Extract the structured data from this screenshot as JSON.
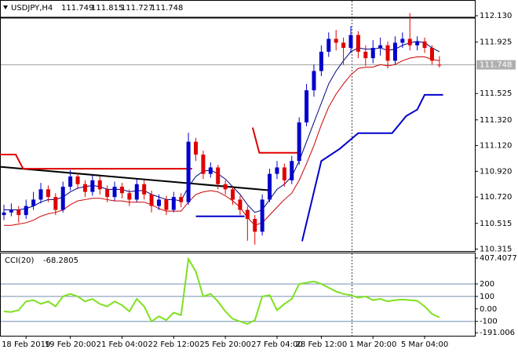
{
  "chart_data": {
    "type": "candlestick",
    "symbol": "USDJPY,H4",
    "xlim": [
      -0.53,
      63.8
    ],
    "ylim": [
      110.3,
      112.24
    ],
    "yticks": [
      {
        "value": 112.13,
        "label": "112.130"
      },
      111.925,
      111.525,
      {
        "value": 111.32,
        "label": "111.320"
      },
      {
        "value": 111.12,
        "label": "111.120"
      },
      {
        "value": 110.92,
        "label": "110.920"
      },
      {
        "value": 110.72,
        "label": "110.720"
      },
      110.515,
      110.315
    ],
    "up_color": "#0000cc",
    "down_color": "#e00000",
    "categories": [
      null,
      null,
      null,
      "18 Feb 2019",
      null,
      null,
      null,
      null,
      null,
      "19 Feb 20:00",
      null,
      null,
      null,
      null,
      null,
      null,
      "21 Feb 04:00",
      null,
      null,
      null,
      null,
      null,
      null,
      "22 Feb 12:00",
      null,
      null,
      null,
      null,
      null,
      null,
      "25 Feb 20:00",
      null,
      null,
      null,
      null,
      null,
      null,
      "27 Feb 04:00",
      null,
      null,
      null,
      null,
      null,
      "28 Feb 12:00",
      null,
      null,
      null,
      null,
      null,
      null,
      "1 Mar 20:00",
      null,
      null,
      null,
      null,
      null,
      null,
      "5 Mar 04:00",
      null,
      null
    ],
    "open": [
      110.58,
      110.6,
      110.62,
      110.58,
      110.65,
      110.7,
      110.78,
      110.72,
      110.62,
      110.8,
      110.88,
      110.82,
      110.76,
      110.85,
      110.78,
      110.72,
      110.8,
      110.75,
      110.7,
      110.82,
      110.74,
      110.65,
      110.7,
      110.62,
      110.72,
      110.68,
      111.15,
      111.05,
      110.9,
      110.95,
      110.82,
      110.78,
      110.7,
      110.62,
      110.55,
      110.45,
      110.7,
      110.9,
      110.95,
      110.85,
      111.0,
      111.3,
      111.55,
      111.7,
      111.85,
      111.95,
      111.92,
      111.88,
      111.98,
      111.85,
      111.8,
      111.88,
      111.9,
      111.78,
      111.92,
      111.95,
      111.9,
      111.93,
      111.88,
      111.749
    ],
    "high": [
      110.66,
      110.67,
      110.65,
      110.7,
      110.76,
      110.83,
      110.81,
      110.75,
      110.84,
      110.93,
      110.91,
      110.85,
      110.89,
      110.88,
      110.81,
      110.84,
      110.83,
      110.78,
      110.86,
      110.85,
      110.77,
      110.74,
      110.73,
      110.76,
      110.75,
      111.22,
      111.18,
      111.08,
      110.99,
      110.97,
      110.85,
      110.8,
      110.73,
      110.65,
      110.58,
      110.74,
      110.94,
      111.0,
      110.98,
      111.04,
      111.34,
      111.6,
      111.75,
      111.9,
      112.0,
      112.02,
      111.96,
      112.05,
      112.01,
      111.9,
      111.94,
      111.96,
      111.93,
      111.97,
      112.0,
      112.15,
      111.97,
      111.96,
      111.9,
      111.815
    ],
    "low": [
      110.54,
      110.57,
      110.52,
      110.55,
      110.62,
      110.67,
      110.68,
      110.58,
      110.6,
      110.77,
      110.78,
      110.72,
      110.73,
      110.74,
      110.68,
      110.69,
      110.71,
      110.65,
      110.68,
      110.7,
      110.6,
      110.62,
      110.58,
      110.6,
      110.64,
      110.66,
      111.0,
      110.86,
      110.87,
      110.78,
      110.74,
      110.66,
      110.58,
      110.38,
      110.35,
      110.42,
      110.68,
      110.86,
      110.8,
      110.82,
      110.97,
      111.27,
      111.5,
      111.66,
      111.81,
      111.86,
      111.75,
      111.84,
      111.8,
      111.74,
      111.76,
      111.82,
      111.72,
      111.75,
      111.88,
      111.86,
      111.86,
      111.84,
      111.75,
      111.727
    ],
    "close": [
      110.6,
      110.62,
      110.58,
      110.65,
      110.7,
      110.78,
      110.72,
      110.62,
      110.8,
      110.88,
      110.82,
      110.76,
      110.85,
      110.78,
      110.72,
      110.8,
      110.75,
      110.7,
      110.82,
      110.74,
      110.65,
      110.7,
      110.62,
      110.72,
      110.68,
      111.15,
      111.05,
      110.9,
      110.95,
      110.82,
      110.78,
      110.7,
      110.62,
      110.55,
      110.45,
      110.7,
      110.9,
      110.95,
      110.85,
      111.0,
      111.3,
      111.55,
      111.7,
      111.85,
      111.95,
      111.92,
      111.88,
      111.98,
      111.85,
      111.8,
      111.88,
      111.9,
      111.78,
      111.92,
      111.95,
      111.9,
      111.93,
      111.88,
      111.78,
      111.748
    ],
    "moving_averages": [
      {
        "color": "#000080",
        "values": [
          110.62,
          110.62,
          110.62,
          110.63,
          110.65,
          110.68,
          110.7,
          110.7,
          110.72,
          110.76,
          110.79,
          110.8,
          110.81,
          110.8,
          110.78,
          110.78,
          110.78,
          110.76,
          110.77,
          110.77,
          110.74,
          110.72,
          110.7,
          110.7,
          110.69,
          110.8,
          110.88,
          110.92,
          110.93,
          110.9,
          110.86,
          110.8,
          110.74,
          110.66,
          110.6,
          110.62,
          110.7,
          110.78,
          110.82,
          110.88,
          111.0,
          111.15,
          111.3,
          111.45,
          111.6,
          111.7,
          111.78,
          111.85,
          111.88,
          111.87,
          111.87,
          111.88,
          111.86,
          111.87,
          111.9,
          111.92,
          111.93,
          111.92,
          111.88,
          111.85
        ]
      },
      {
        "color": "#cc0000",
        "values": [
          110.5,
          110.5,
          110.51,
          110.52,
          110.54,
          110.57,
          110.59,
          110.6,
          110.62,
          110.66,
          110.69,
          110.7,
          110.71,
          110.71,
          110.7,
          110.69,
          110.69,
          110.68,
          110.68,
          110.68,
          110.66,
          110.63,
          110.61,
          110.61,
          110.61,
          110.68,
          110.74,
          110.76,
          110.77,
          110.76,
          110.73,
          110.69,
          110.64,
          110.56,
          110.5,
          110.52,
          110.58,
          110.64,
          110.7,
          110.75,
          110.85,
          110.98,
          111.12,
          111.28,
          111.42,
          111.52,
          111.6,
          111.67,
          111.72,
          111.73,
          111.73,
          111.75,
          111.74,
          111.75,
          111.78,
          111.8,
          111.81,
          111.81,
          111.79,
          111.78
        ]
      }
    ],
    "overlays": [
      {
        "color": "#000000",
        "width": 2,
        "x": [
          -0.53,
          63.8
        ],
        "values": [
          112.115,
          112.115
        ]
      },
      {
        "color": "#000000",
        "width": 2,
        "x": [
          -0.53,
          36
        ],
        "values": [
          110.955,
          110.772
        ]
      },
      {
        "color": "#e00000",
        "width": 2,
        "x": [
          -0.53,
          1.6,
          2.6,
          25.5
        ],
        "values": [
          111.05,
          111.05,
          110.94,
          110.94
        ]
      },
      {
        "color": "#e00000",
        "width": 2,
        "x": [
          33.7,
          34.6,
          39.8
        ],
        "values": [
          111.26,
          111.064,
          111.064
        ]
      },
      {
        "color": "#0000cc",
        "width": 2,
        "x": [
          26,
          32.6
        ],
        "values": [
          110.57,
          110.57
        ]
      },
      {
        "color": "#0000cc",
        "width": 2,
        "x": [
          40.4,
          43,
          45.5,
          48,
          52.6,
          54.5,
          56,
          57,
          59.5
        ],
        "values": [
          110.376,
          111.0,
          111.095,
          111.217,
          111.217,
          111.35,
          111.4,
          111.515,
          111.515
        ]
      }
    ],
    "indicator": {
      "name": "CCI(20)",
      "color": "#7fe020",
      "ylim": [
        -215,
        445
      ],
      "yticks": [
        407.4077,
        200,
        100,
        {
          "value": 0,
          "label": "0.00"
        },
        -100,
        -191.006
      ],
      "values": [
        -20,
        -25,
        -10,
        60,
        70,
        40,
        60,
        20,
        100,
        120,
        100,
        60,
        80,
        40,
        20,
        60,
        30,
        -20,
        80,
        20,
        -100,
        -60,
        -90,
        -30,
        -50,
        400,
        300,
        100,
        120,
        60,
        -20,
        -80,
        -100,
        -120,
        -90,
        100,
        110,
        -10,
        40,
        80,
        200,
        210,
        220,
        200,
        170,
        140,
        120,
        110,
        90,
        100,
        70,
        80,
        60,
        70,
        75,
        70,
        65,
        20,
        -40,
        -68.2805
      ]
    }
  }
}
